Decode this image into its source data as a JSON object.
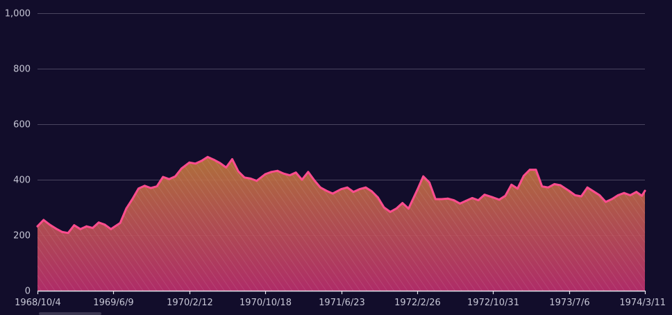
{
  "chart_data": {
    "type": "area",
    "title": "",
    "xlabel": "",
    "ylabel": "",
    "ylim": [
      0,
      1000
    ],
    "y_ticks": [
      "0",
      "200",
      "400",
      "600",
      "800",
      "1,000"
    ],
    "y_tick_values": [
      0,
      200,
      400,
      600,
      800,
      1000
    ],
    "x_ticks": [
      "1968/10/4",
      "1969/6/9",
      "1970/2/12",
      "1970/10/18",
      "1971/6/23",
      "1972/2/26",
      "1972/10/31",
      "1973/7/6",
      "1974/3/11"
    ],
    "x_range": [
      "1968/10/4",
      "1974/3/11"
    ],
    "grid": true,
    "colors": {
      "background": "#120d2b",
      "line": "#ff4d8f",
      "fill_top": "#c07a3c",
      "fill_bottom": "#c0306e",
      "grid": "#4a4560"
    },
    "series": [
      {
        "name": "",
        "x": [
          "1968/10/4",
          "1968/10/24",
          "1968/11/13",
          "1968/12/3",
          "1968/12/23",
          "1969/1/12",
          "1969/2/1",
          "1969/2/21",
          "1969/3/13",
          "1969/4/2",
          "1969/4/22",
          "1969/5/12",
          "1969/6/1",
          "1969/6/9",
          "1969/7/1",
          "1969/7/21",
          "1969/8/10",
          "1969/8/30",
          "1969/9/19",
          "1969/10/9",
          "1969/10/29",
          "1969/11/18",
          "1969/12/8",
          "1969/12/28",
          "1970/1/17",
          "1970/2/12",
          "1970/3/4",
          "1970/3/24",
          "1970/4/13",
          "1970/5/3",
          "1970/5/23",
          "1970/6/12",
          "1970/7/2",
          "1970/7/22",
          "1970/8/11",
          "1970/8/31",
          "1970/9/20",
          "1970/10/18",
          "1970/11/7",
          "1970/11/27",
          "1970/12/17",
          "1971/1/6",
          "1971/1/26",
          "1971/2/15",
          "1971/3/7",
          "1971/3/27",
          "1971/4/16",
          "1971/5/6",
          "1971/5/26",
          "1971/6/23",
          "1971/7/13",
          "1971/8/2",
          "1971/8/22",
          "1971/9/11",
          "1971/10/1",
          "1971/10/21",
          "1971/11/10",
          "1971/11/30",
          "1971/12/20",
          "1972/1/9",
          "1972/1/29",
          "1972/2/26",
          "1972/3/17",
          "1972/4/6",
          "1972/4/26",
          "1972/5/16",
          "1972/6/5",
          "1972/6/25",
          "1972/7/15",
          "1972/8/4",
          "1972/8/24",
          "1972/9/13",
          "1972/10/3",
          "1972/10/31",
          "1972/11/20",
          "1972/12/10",
          "1972/12/30",
          "1973/1/19",
          "1973/2/8",
          "1973/2/28",
          "1973/3/20",
          "1973/4/9",
          "1973/4/29",
          "1973/5/19",
          "1973/6/8",
          "1973/7/6",
          "1973/7/26",
          "1973/8/15",
          "1973/9/4",
          "1973/9/24",
          "1973/10/14",
          "1973/11/3",
          "1973/11/23",
          "1973/12/13",
          "1974/1/2",
          "1974/1/22",
          "1974/2/11",
          "1974/3/1",
          "1974/3/11"
        ],
        "y": [
          232,
          255,
          238,
          224,
          212,
          208,
          236,
          222,
          232,
          226,
          246,
          238,
          222,
          228,
          244,
          296,
          330,
          368,
          378,
          370,
          376,
          410,
          402,
          412,
          440,
          462,
          458,
          468,
          482,
          472,
          460,
          444,
          474,
          430,
          408,
          404,
          396,
          420,
          428,
          432,
          422,
          416,
          426,
          400,
          428,
          398,
          372,
          360,
          350,
          366,
          372,
          356,
          366,
          372,
          358,
          336,
          300,
          284,
          296,
          316,
          296,
          362,
          412,
          390,
          330,
          330,
          332,
          326,
          314,
          324,
          334,
          326,
          346,
          336,
          328,
          342,
          382,
          368,
          414,
          436,
          436,
          376,
          372,
          384,
          380,
          360,
          344,
          340,
          372,
          358,
          344,
          320,
          330,
          344,
          352,
          344,
          356,
          342,
          360
        ]
      }
    ]
  }
}
